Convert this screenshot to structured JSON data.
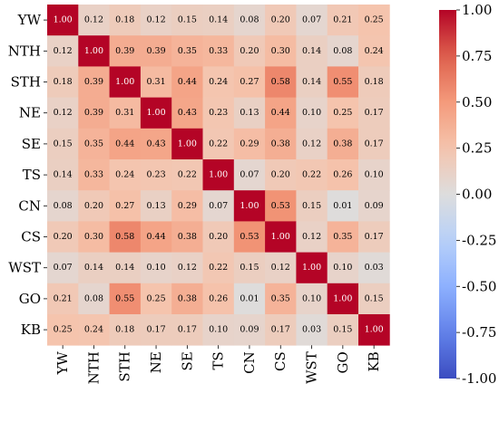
{
  "chart_data": {
    "type": "heatmap",
    "title": "",
    "xlabel": "",
    "ylabel": "",
    "labels": [
      "YW",
      "NTH",
      "STH",
      "NE",
      "SE",
      "TS",
      "CN",
      "CS",
      "WST",
      "GO",
      "KB"
    ],
    "matrix": [
      [
        1.0,
        0.12,
        0.18,
        0.12,
        0.15,
        0.14,
        0.08,
        0.2,
        0.07,
        0.21,
        0.25
      ],
      [
        0.12,
        1.0,
        0.39,
        0.39,
        0.35,
        0.33,
        0.2,
        0.3,
        0.14,
        0.08,
        0.24
      ],
      [
        0.18,
        0.39,
        1.0,
        0.31,
        0.44,
        0.24,
        0.27,
        0.58,
        0.14,
        0.55,
        0.18
      ],
      [
        0.12,
        0.39,
        0.31,
        1.0,
        0.43,
        0.23,
        0.13,
        0.44,
        0.1,
        0.25,
        0.17
      ],
      [
        0.15,
        0.35,
        0.44,
        0.43,
        1.0,
        0.22,
        0.29,
        0.38,
        0.12,
        0.38,
        0.17
      ],
      [
        0.14,
        0.33,
        0.24,
        0.23,
        0.22,
        1.0,
        0.07,
        0.2,
        0.22,
        0.26,
        0.1
      ],
      [
        0.08,
        0.2,
        0.27,
        0.13,
        0.29,
        0.07,
        1.0,
        0.53,
        0.15,
        0.01,
        0.09
      ],
      [
        0.2,
        0.3,
        0.58,
        0.44,
        0.38,
        0.2,
        0.53,
        1.0,
        0.12,
        0.35,
        0.17
      ],
      [
        0.07,
        0.14,
        0.14,
        0.1,
        0.12,
        0.22,
        0.15,
        0.12,
        1.0,
        0.1,
        0.03
      ],
      [
        0.21,
        0.08,
        0.55,
        0.25,
        0.38,
        0.26,
        0.01,
        0.35,
        0.1,
        1.0,
        0.15
      ],
      [
        0.25,
        0.24,
        0.18,
        0.17,
        0.17,
        0.1,
        0.09,
        0.17,
        0.03,
        0.15,
        1.0
      ]
    ],
    "colormap": "coolwarm",
    "vmin": -1.0,
    "vmax": 1.0,
    "colorbar_ticks": [
      "1.00",
      "0.75",
      "0.50",
      "0.25",
      "0.00",
      "-0.25",
      "-0.50",
      "-0.75",
      "-1.00"
    ],
    "colorbar_tick_values": [
      1.0,
      0.75,
      0.5,
      0.25,
      0.0,
      -0.25,
      -0.5,
      -0.75,
      -1.0
    ],
    "grid": false
  }
}
